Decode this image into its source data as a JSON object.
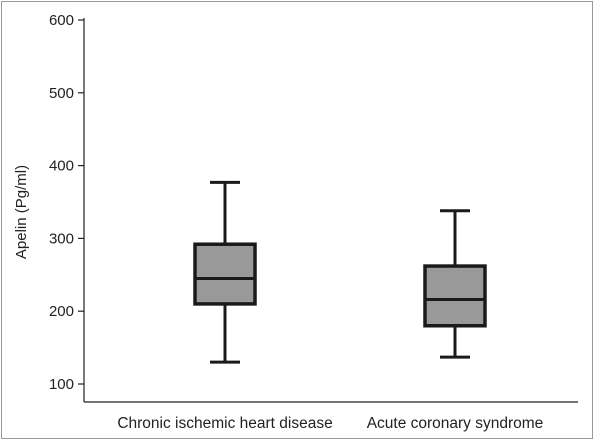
{
  "chart_data": {
    "type": "box",
    "title": "",
    "xlabel": "",
    "ylabel": "Apelin (Pg/ml)",
    "ylim": [
      80,
      600
    ],
    "yticks": [
      100,
      200,
      300,
      400,
      500,
      600
    ],
    "ytick_labels": [
      "100",
      "200",
      "300",
      "400",
      "500",
      "600"
    ],
    "grid": false,
    "categories": [
      "Chronic ischemic heart disease",
      "Acute coronary syndrome"
    ],
    "boxes": [
      {
        "category": "Chronic ischemic heart disease",
        "min": 130,
        "q1": 210,
        "median": 245,
        "q3": 292,
        "max": 377
      },
      {
        "category": "Acute coronary syndrome",
        "min": 137,
        "q1": 180,
        "median": 216,
        "q3": 262,
        "max": 338
      }
    ],
    "colors": {
      "box_fill": "#999999",
      "stroke": "#1a1a1a",
      "axis": "#222222"
    }
  }
}
